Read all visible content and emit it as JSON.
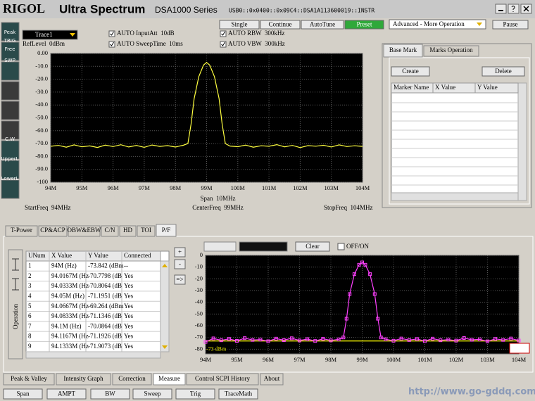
{
  "header": {
    "brand": "RIGOL",
    "ultra": "Ultra",
    "spectrum": "Spectrum",
    "series": "DSA1000 Series",
    "usb": "USB0::0x0400::0x09C4::DSA1A113600019::INSTR"
  },
  "left_icons": [
    "Peak",
    "TRIG",
    "Free",
    "SWP",
    "C.W",
    "UpperL",
    "LowerL"
  ],
  "top_buttons": [
    "Single",
    "Continue",
    "AutoTune",
    "Preset"
  ],
  "mode_select": "Advanced - More Operation",
  "pause": "Pause",
  "trace_select": "Trace1",
  "ref_level": "RefLevel  0dBm",
  "settings": [
    "AUTO InputAtt  10dB",
    "AUTO SweepTime  10ms",
    "AUTO RBW  300kHz",
    "AUTO VBW  300kHz"
  ],
  "marker_panel": {
    "tabs": [
      "Base Mark",
      "Marks Operation"
    ],
    "create": "Create",
    "delete": "Delete",
    "columns": [
      "Marker Name",
      "X Value",
      "Y Value"
    ]
  },
  "measure_tabs": [
    "T-Power",
    "CP&ACP",
    "OBW&EBW",
    "C/N",
    "HD",
    "TOI",
    "P/F"
  ],
  "pf": {
    "side_label": "Operation",
    "buttons": [
      "+",
      "-",
      "=>"
    ],
    "clear": "Clear",
    "offon": "OFF/ON",
    "columns": [
      "UNum",
      "X Value",
      "Y Value",
      "Connected"
    ],
    "rows": [
      [
        "1",
        "94M (Hz)",
        "-73.842 (dBm",
        "--"
      ],
      [
        "2",
        "94.0167M (Hz",
        "-70.7798 (dB",
        "Yes"
      ],
      [
        "3",
        "94.0333M (Hz",
        "-70.8064 (dB",
        "Yes"
      ],
      [
        "4",
        "94.05M (Hz)",
        "-71.1951 (dB",
        "Yes"
      ],
      [
        "5",
        "94.0667M (Hz",
        "-69.264 (dBm",
        "Yes"
      ],
      [
        "6",
        "94.0833M (Hz",
        "-71.1346 (dB",
        "Yes"
      ],
      [
        "7",
        "94.1M (Hz)",
        "-70.0864 (dB",
        "Yes"
      ],
      [
        "8",
        "94.1167M (Hz",
        "-71.1926 (dB",
        "Yes"
      ],
      [
        "9",
        "94.1333M (Hz",
        "-71.9073 (dB",
        "Yes"
      ]
    ]
  },
  "bottom_tabs": [
    "Peak & Valley",
    "Intensity Graph",
    "Correction",
    "Measure",
    "Control SCPI History",
    "About"
  ],
  "bottom_buttons": [
    "Span",
    "AMPT",
    "BW",
    "Sweep",
    "Trig",
    "TraceMath"
  ],
  "watermark": "http://www.go-gddq.com",
  "chart_data": [
    {
      "type": "line",
      "color": "#ffff40",
      "grid": true,
      "x": [
        94,
        94.25,
        94.5,
        94.75,
        95,
        95.25,
        95.5,
        95.75,
        96,
        96.25,
        96.5,
        96.75,
        97,
        97.25,
        97.5,
        97.75,
        98,
        98.25,
        98.4,
        98.5,
        98.6,
        98.75,
        98.9,
        99,
        99.1,
        99.25,
        99.4,
        99.5,
        99.6,
        99.75,
        100,
        100.25,
        100.5,
        100.75,
        101,
        101.25,
        101.5,
        101.75,
        102,
        102.25,
        102.5,
        102.75,
        103,
        103.25,
        103.5,
        103.75,
        104
      ],
      "values": [
        -72.1,
        -71.4,
        -72.8,
        -71.0,
        -72.5,
        -71.8,
        -73.0,
        -71.2,
        -72.3,
        -70.9,
        -72.6,
        -71.5,
        -72.9,
        -71.1,
        -72.2,
        -71.6,
        -72.7,
        -71.3,
        -70,
        -55,
        -35,
        -18,
        -9,
        -7,
        -9,
        -18,
        -35,
        -55,
        -70,
        -71.9,
        -72.4,
        -71.2,
        -72.8,
        -71.7,
        -72.1,
        -70.8,
        -72.5,
        -71.4,
        -73.1,
        -71.6,
        -72.0,
        -71.3,
        -72.6,
        -71.0,
        -72.3,
        -71.7,
        -72.2
      ],
      "xlim": [
        94,
        104
      ],
      "ylim": [
        -100,
        0
      ],
      "xticks": [
        {
          "value": 94,
          "label": "94M"
        },
        {
          "value": 95,
          "label": "95M"
        },
        {
          "value": 96,
          "label": "96M"
        },
        {
          "value": 97,
          "label": "97M"
        },
        {
          "value": 98,
          "label": "98M"
        },
        {
          "value": 99,
          "label": "99M"
        },
        {
          "value": 100,
          "label": "100M"
        },
        {
          "value": 101,
          "label": "101M"
        },
        {
          "value": 102,
          "label": "102M"
        },
        {
          "value": 103,
          "label": "103M"
        },
        {
          "value": 104,
          "label": "104M"
        }
      ],
      "yticks": [
        {
          "value": 0,
          "label": "0.00"
        },
        {
          "value": -10,
          "label": "-10.0"
        },
        {
          "value": -20,
          "label": "-20.0"
        },
        {
          "value": -30,
          "label": "-30.0"
        },
        {
          "value": -40,
          "label": "-40.0"
        },
        {
          "value": -50,
          "label": "-50.0"
        },
        {
          "value": -60,
          "label": "-60.0"
        },
        {
          "value": -70,
          "label": "-70.0"
        },
        {
          "value": -80,
          "label": "-80.0"
        },
        {
          "value": -90,
          "label": "-90.0"
        },
        {
          "value": -100,
          "label": "-100"
        }
      ],
      "annotations": [
        "Span  10MHz",
        "CenterFreq  99MHz",
        "StartFreq  94MHz",
        "StopFreq  104MHz"
      ]
    },
    {
      "type": "line",
      "color": "#ff40ff",
      "grid": true,
      "markers": true,
      "x": [
        94,
        94.25,
        94.5,
        94.75,
        95,
        95.25,
        95.5,
        95.75,
        96,
        96.25,
        96.5,
        96.75,
        97,
        97.25,
        97.5,
        97.75,
        98,
        98.25,
        98.4,
        98.5,
        98.6,
        98.75,
        98.9,
        99,
        99.1,
        99.25,
        99.4,
        99.5,
        99.6,
        99.75,
        100,
        100.25,
        100.5,
        100.75,
        101,
        101.25,
        101.5,
        101.75,
        102,
        102.25,
        102.5,
        102.75,
        103,
        103.25,
        103.5,
        103.75,
        104
      ],
      "values": [
        -73.8,
        -70.8,
        -72.4,
        -71.2,
        -72.9,
        -70.6,
        -72.1,
        -71.8,
        -73.2,
        -71.0,
        -72.3,
        -70.7,
        -72.6,
        -71.4,
        -73.0,
        -71.1,
        -72.5,
        -71.6,
        -70,
        -54,
        -33,
        -16,
        -8,
        -6,
        -8,
        -16,
        -33,
        -54,
        -70,
        -71.5,
        -72.8,
        -70.9,
        -72.2,
        -71.3,
        -73.1,
        -71.0,
        -72.4,
        -71.8,
        -72.7,
        -70.5,
        -72.0,
        -71.6,
        -73.3,
        -71.2,
        -72.1,
        -70.9,
        -72.6
      ],
      "xlim": [
        94,
        104
      ],
      "ylim": [
        -84,
        0
      ],
      "xticks": [
        {
          "value": 94,
          "label": "94M"
        },
        {
          "value": 95,
          "label": "95M"
        },
        {
          "value": 96,
          "label": "96M"
        },
        {
          "value": 97,
          "label": "97M"
        },
        {
          "value": 98,
          "label": "98M"
        },
        {
          "value": 99,
          "label": "99M"
        },
        {
          "value": 100,
          "label": "100M"
        },
        {
          "value": 101,
          "label": "101M"
        },
        {
          "value": 102,
          "label": "102M"
        },
        {
          "value": 103,
          "label": "103M"
        },
        {
          "value": 104,
          "label": "104M"
        }
      ],
      "yticks": [
        0,
        -10,
        -20,
        -30,
        -40,
        -50,
        -60,
        -70,
        -80
      ],
      "limit_line": {
        "value": -73,
        "label": "-73 dBm",
        "color": "#e0e000"
      }
    }
  ]
}
